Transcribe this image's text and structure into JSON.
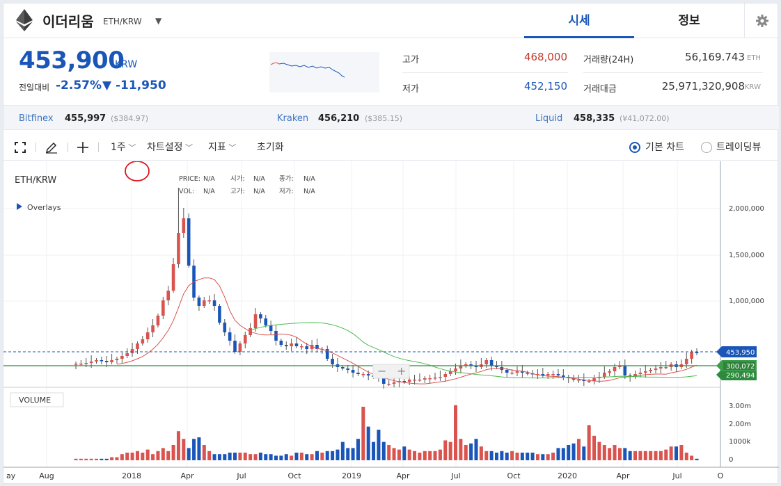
{
  "header": {
    "coin_name": "이더리움",
    "pair": "ETH/KRW",
    "tabs": [
      "시세",
      "정보"
    ]
  },
  "summary": {
    "price": "453,900",
    "unit": "KRW",
    "change_label": "전일대비",
    "change_rate": "-2.57%",
    "change_amount": "▼ -11,950",
    "high_label": "고가",
    "high_value": "468,000",
    "low_label": "저가",
    "low_value": "452,150",
    "volume_label": "거래량(24H)",
    "volume_value": "56,169.743",
    "volume_unit": "ETH",
    "amount_label": "거래대금",
    "amount_value": "25,971,320,908",
    "amount_unit": "KRW"
  },
  "exchanges": [
    {
      "name": "Bitfinex",
      "value": "455,997",
      "sub": "($384.97)"
    },
    {
      "name": "Kraken",
      "value": "456,210",
      "sub": "($385.15)"
    },
    {
      "name": "Liquid",
      "value": "458,335",
      "sub": "(¥41,072.00)"
    }
  ],
  "toolbar": {
    "period": "1주",
    "chart_settings": "차트설정",
    "indicators": "지표",
    "reset": "초기화",
    "basic_chart": "기본 차트",
    "tradingview": "트레이딩뷰"
  },
  "chart": {
    "symbol": "ETH/KRW",
    "overlays": "Overlays",
    "legend": {
      "price_label": "PRICE:",
      "price_val": "N/A",
      "open_label": "시가:",
      "open_val": "N/A",
      "close_label": "종가:",
      "close_val": "N/A",
      "vol_label": "VOL:",
      "vol_val": "N/A",
      "high_label": "고가:",
      "high_val": "N/A",
      "low_label": "저가:",
      "low_val": "N/A"
    },
    "price_ticks": [
      "2,000,000",
      "1,500,000",
      "1,000,000"
    ],
    "volume_ticks": [
      "3.00m",
      "2.00m",
      "1000k",
      "0"
    ],
    "time_ticks": [
      "ay",
      "Aug",
      "2018",
      "Apr",
      "Jul",
      "Oct",
      "2019",
      "Apr",
      "Jul",
      "Oct",
      "2020",
      "Apr",
      "Jul",
      "O"
    ],
    "volume_label": "VOLUME",
    "current_price_tag": "453,950",
    "ma_tag_1": "300,072",
    "ma_tag_2": "290,494",
    "zoom_minus": "−",
    "zoom_plus": "+",
    "colors": {
      "up": "#d9534f",
      "down": "#1a56b8",
      "ma_short": "#d9534f",
      "ma_long": "#4cbb4c",
      "tag": "#1a56b8",
      "tag_green": "#2e8b3e"
    }
  }
}
